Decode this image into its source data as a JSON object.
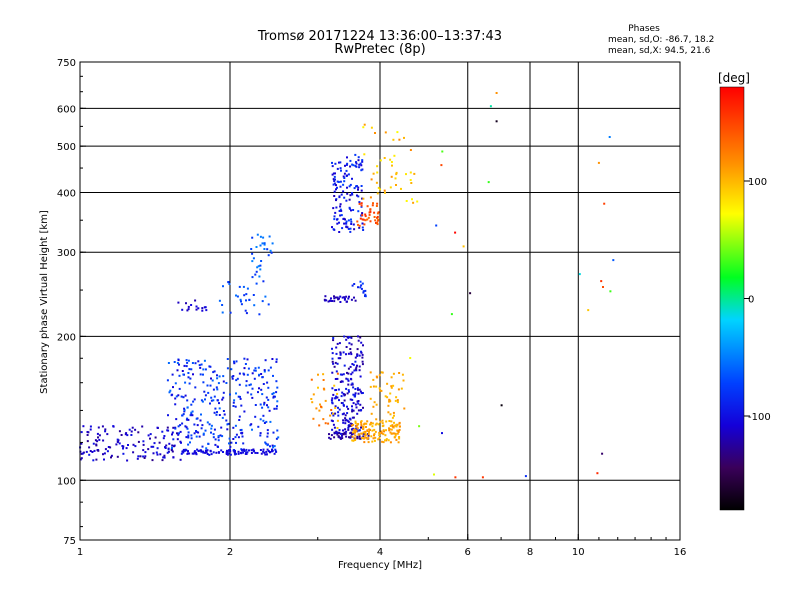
{
  "header": {
    "title": "Tromsø 20171224 13:36:00–13:37:43",
    "subtitle": "RwPretec (8p)",
    "stats_title": "Phases",
    "stats_line1": "mean, sd,O: -86.7, 18.2",
    "stats_line2": "mean, sd,X:  94.5, 21.6"
  },
  "colorbar": {
    "label": "[deg]",
    "ticks": [
      {
        "value": 100,
        "label": "100"
      },
      {
        "value": 0,
        "label": "0"
      },
      {
        "value": -100,
        "label": "-100"
      }
    ],
    "range": [
      -180,
      180
    ]
  },
  "chart_data": {
    "type": "scatter",
    "xlabel": "Frequency [MHz]",
    "ylabel": "Stationary phase Virtual Height [km]",
    "xscale": "log",
    "yscale": "log",
    "xlim": [
      1,
      16
    ],
    "ylim": [
      75,
      750
    ],
    "xticks": [
      {
        "value": 1,
        "label": "1"
      },
      {
        "value": 2,
        "label": "2"
      },
      {
        "value": 4,
        "label": "4"
      },
      {
        "value": 6,
        "label": "6"
      },
      {
        "value": 8,
        "label": "8"
      },
      {
        "value": 10,
        "label": "10"
      },
      {
        "value": 16,
        "label": "16"
      }
    ],
    "xgrid": [
      2,
      4,
      6,
      8,
      10
    ],
    "yticks": [
      {
        "value": 75,
        "label": "75"
      },
      {
        "value": 100,
        "label": "100"
      },
      {
        "value": 200,
        "label": "200"
      },
      {
        "value": 300,
        "label": "300"
      },
      {
        "value": 400,
        "label": "400"
      },
      {
        "value": 500,
        "label": "500"
      },
      {
        "value": 600,
        "label": "600"
      },
      {
        "value": 750,
        "label": "750"
      }
    ],
    "ygrid": [
      100,
      200,
      300,
      400,
      500,
      600
    ],
    "color_metric": "phase [deg]",
    "clusters": [
      {
        "fmin": 1.0,
        "fmax": 1.6,
        "hmin": 110,
        "hmax": 130,
        "pmin": -130,
        "pmax": -95,
        "count": 140
      },
      {
        "fmin": 1.5,
        "fmax": 2.5,
        "hmin": 115,
        "hmax": 180,
        "pmin": -110,
        "pmax": -55,
        "count": 330
      },
      {
        "fmin": 1.6,
        "fmax": 2.5,
        "hmin": 113,
        "hmax": 116,
        "pmin": -110,
        "pmax": -95,
        "count": 110
      },
      {
        "fmin": 1.55,
        "fmax": 1.8,
        "hmin": 226,
        "hmax": 238,
        "pmin": -120,
        "pmax": -100,
        "count": 16
      },
      {
        "fmin": 1.9,
        "fmax": 2.4,
        "hmin": 222,
        "hmax": 260,
        "pmin": -90,
        "pmax": -50,
        "count": 30
      },
      {
        "fmin": 2.2,
        "fmax": 2.45,
        "hmin": 260,
        "hmax": 330,
        "pmin": -85,
        "pmax": -45,
        "count": 30
      },
      {
        "fmin": 3.2,
        "fmax": 3.7,
        "hmin": 125,
        "hmax": 200,
        "pmin": -130,
        "pmax": -90,
        "count": 210
      },
      {
        "fmin": 3.15,
        "fmax": 3.8,
        "hmin": 122,
        "hmax": 126,
        "pmin": -135,
        "pmax": -115,
        "count": 45
      },
      {
        "fmin": 3.5,
        "fmax": 4.4,
        "hmin": 120,
        "hmax": 133,
        "pmin": 95,
        "pmax": 120,
        "count": 140
      },
      {
        "fmin": 2.9,
        "fmax": 3.3,
        "hmin": 128,
        "hmax": 170,
        "pmin": 90,
        "pmax": 140,
        "count": 30
      },
      {
        "fmin": 3.8,
        "fmax": 4.5,
        "hmin": 133,
        "hmax": 175,
        "pmin": 95,
        "pmax": 115,
        "count": 50
      },
      {
        "fmin": 3.1,
        "fmax": 3.6,
        "hmin": 236,
        "hmax": 243,
        "pmin": -125,
        "pmax": -105,
        "count": 30
      },
      {
        "fmin": 3.5,
        "fmax": 3.75,
        "hmin": 240,
        "hmax": 265,
        "pmin": -95,
        "pmax": -70,
        "count": 14
      },
      {
        "fmin": 3.2,
        "fmax": 3.7,
        "hmin": 330,
        "hmax": 480,
        "pmin": -120,
        "pmax": -70,
        "count": 140
      },
      {
        "fmin": 3.6,
        "fmax": 4.0,
        "hmin": 340,
        "hmax": 380,
        "pmin": 130,
        "pmax": 160,
        "count": 40
      },
      {
        "fmin": 3.7,
        "fmax": 4.8,
        "hmin": 380,
        "hmax": 560,
        "pmin": 70,
        "pmax": 120,
        "count": 45
      },
      {
        "fmin": 4.0,
        "fmax": 13.0,
        "hmin": 100,
        "hmax": 650,
        "pmin": -180,
        "pmax": 180,
        "count": 30
      }
    ]
  }
}
